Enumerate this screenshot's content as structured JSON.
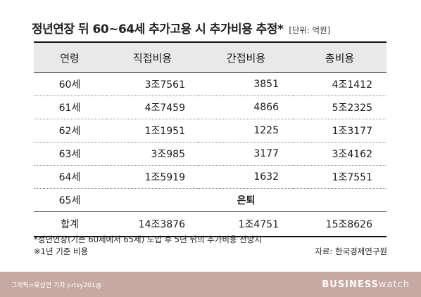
{
  "title": "정년연장 뒤 60~64세 추가고용 시 추가비용 추정*",
  "unit": "[단위: 억원]",
  "table": {
    "headers": [
      "연령",
      "직접비용",
      "간접비용",
      "총비용"
    ],
    "rows": [
      [
        "60세",
        "3조7561",
        "3851",
        "4조1412"
      ],
      [
        "61세",
        "4조7459",
        "4866",
        "5조2325"
      ],
      [
        "62세",
        "1조1951",
        "1225",
        "1조3177"
      ],
      [
        "63세",
        "3조985",
        "3177",
        "3조4162"
      ],
      [
        "64세",
        "1조5919",
        "1632",
        "1조7551"
      ]
    ],
    "retired_row": {
      "age": "65세",
      "note": "은퇴"
    },
    "total_row": [
      "합계",
      "14조3876",
      "1조4751",
      "15조8626"
    ]
  },
  "footnote1": "*정년연장(기존 60세에서 65세) 도입 후 5년 뒤의 추가비용 전망치",
  "footnote2": "※1년 기준 비용",
  "source": "자료: 한국경제연구원",
  "footer": {
    "credit": "그래픽=유상연 기자 prtsy201@",
    "brand_bold": "BUSINESS",
    "brand_light": "watch"
  }
}
